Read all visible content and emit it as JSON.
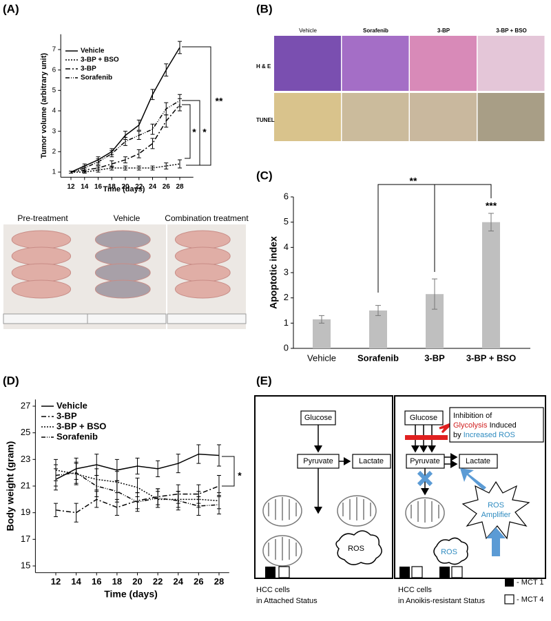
{
  "panels": [
    "(A)",
    "(B)",
    "(C)",
    "(D)",
    "(E)"
  ],
  "chart_data": [
    {
      "type": "line",
      "xlabel": "Time (days)",
      "ylabel": "Tumor volume (arbitrary unit)",
      "x": [
        12,
        14,
        16,
        18,
        20,
        22,
        24,
        26,
        28
      ],
      "xlim": [
        10.5,
        30
      ],
      "xticks": [
        12,
        14,
        16,
        18,
        20,
        22,
        24,
        26,
        28
      ],
      "ylim": [
        0.75,
        7.75
      ],
      "yticks": [
        1,
        2,
        3,
        4,
        5,
        6,
        7
      ],
      "series": [
        {
          "name": "Vehicle",
          "color": "#000000",
          "dash": "solid",
          "values": [
            1.0,
            1.3,
            1.6,
            2.0,
            2.8,
            3.3,
            4.8,
            6.0,
            7.1
          ],
          "errors": [
            0.05,
            0.1,
            0.15,
            0.15,
            0.2,
            0.25,
            0.25,
            0.3,
            0.3
          ]
        },
        {
          "name": "3-BP + BSO",
          "color": "#000000",
          "dash": "dotted",
          "values": [
            1.0,
            1.0,
            1.1,
            1.2,
            1.2,
            1.2,
            1.2,
            1.3,
            1.4
          ],
          "errors": [
            0.05,
            0.05,
            0.1,
            0.1,
            0.1,
            0.1,
            0.1,
            0.15,
            0.2
          ]
        },
        {
          "name": "3-BP",
          "color": "#000000",
          "dash": "dashdot",
          "values": [
            1.0,
            1.1,
            1.2,
            1.4,
            1.6,
            1.9,
            2.4,
            3.5,
            4.3
          ],
          "errors": [
            0.05,
            0.1,
            0.1,
            0.15,
            0.15,
            0.2,
            0.25,
            0.3,
            0.3
          ]
        },
        {
          "name": "Sorafenib",
          "color": "#000000",
          "dash": "dashdotdot",
          "values": [
            1.0,
            1.2,
            1.5,
            1.9,
            2.5,
            2.8,
            3.1,
            4.1,
            4.5
          ],
          "errors": [
            0.05,
            0.1,
            0.15,
            0.15,
            0.2,
            0.2,
            0.25,
            0.3,
            0.3
          ]
        }
      ],
      "annotations": [
        "**",
        "*",
        "*"
      ],
      "photo_labels": [
        "Pre-treatment",
        "Vehicle",
        "Combination treatment"
      ]
    },
    {
      "type": "bar",
      "ylabel": "Apoptotic index",
      "categories": [
        "Vehicle",
        "Sorafenib",
        "3-BP",
        "3-BP + BSO"
      ],
      "values": [
        1.15,
        1.5,
        2.15,
        5.0
      ],
      "errors": [
        0.15,
        0.2,
        0.6,
        0.35
      ],
      "color": "#bfbfbf",
      "ylim": [
        0,
        6
      ],
      "yticks": [
        0,
        1,
        2,
        3,
        4,
        5,
        6
      ],
      "annotations": [
        "**",
        "***"
      ]
    },
    {
      "type": "line",
      "xlabel": "Time (days)",
      "ylabel": "Body weight (gram)",
      "x": [
        12,
        14,
        16,
        18,
        20,
        22,
        24,
        26,
        28
      ],
      "xlim": [
        10,
        29
      ],
      "xticks": [
        12,
        14,
        16,
        18,
        20,
        22,
        24,
        26,
        28
      ],
      "ylim": [
        14.5,
        27.5
      ],
      "yticks": [
        15,
        17,
        19,
        21,
        23,
        25,
        27
      ],
      "series": [
        {
          "name": "Vehicle",
          "color": "#000000",
          "dash": "solid",
          "values": [
            21.5,
            22.3,
            22.6,
            22.2,
            22.5,
            22.3,
            22.7,
            23.4,
            23.3
          ],
          "errors": [
            0.8,
            0.8,
            0.8,
            0.8,
            0.6,
            0.6,
            0.7,
            0.7,
            0.8
          ]
        },
        {
          "name": "3-BP",
          "color": "#000000",
          "dash": "dashdot",
          "values": [
            19.2,
            19.0,
            20.0,
            19.4,
            19.9,
            20.2,
            20.4,
            20.4,
            21.0
          ],
          "errors": [
            0.5,
            0.7,
            0.6,
            0.6,
            0.6,
            0.6,
            0.7,
            0.7,
            0.8
          ]
        },
        {
          "name": "3-BP + BSO",
          "color": "#000000",
          "dash": "dotted",
          "values": [
            22.2,
            21.9,
            21.5,
            21.3,
            20.9,
            20.0,
            20.0,
            20.0,
            19.9
          ],
          "errors": [
            0.8,
            0.8,
            0.8,
            0.8,
            0.7,
            0.6,
            0.6,
            0.6,
            0.6
          ]
        },
        {
          "name": "Sorafenib",
          "color": "#000000",
          "dash": "dashdotdot",
          "values": [
            21.8,
            22.0,
            21.0,
            20.6,
            19.8,
            20.1,
            19.9,
            19.5,
            19.6
          ],
          "errors": [
            0.8,
            0.8,
            0.8,
            0.8,
            0.7,
            0.7,
            0.7,
            0.7,
            0.7
          ]
        }
      ],
      "annotations": [
        "*"
      ]
    }
  ],
  "histology": {
    "columns": [
      "Vehicle",
      "Sorafenib",
      "3-BP",
      "3-BP + BSO"
    ],
    "rows": [
      "H & E",
      "TUNEL"
    ]
  },
  "diagram": {
    "left": {
      "glucose": "Glucose",
      "pyruvate": "Pyruvate",
      "lactate": "Lactate",
      "ros": "ROS",
      "caption": [
        "HCC cells",
        "in Attached Status"
      ]
    },
    "right": {
      "glucose": "Glucose",
      "pyruvate": "Pyruvate",
      "lactate": "Lactate",
      "note": [
        "Inhibition of",
        "Glycolysis",
        " Induced",
        "by",
        "Increased ROS"
      ],
      "amplifier": [
        "ROS",
        "Amplifier"
      ],
      "ros": "ROS",
      "caption": [
        "HCC cells",
        "in Anoikis-resistant  Status"
      ]
    },
    "legend": [
      "- MCT 1",
      "- MCT 4"
    ]
  }
}
